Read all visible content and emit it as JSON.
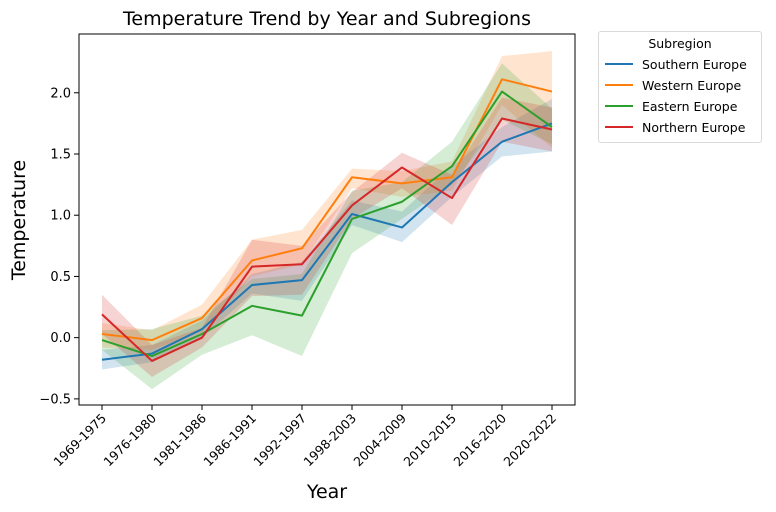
{
  "chart_data": {
    "type": "line",
    "title": "Temperature Trend by Year and Subregions",
    "xlabel": "Year",
    "ylabel": "Temperature",
    "categories": [
      "1969-1975",
      "1976-1980",
      "1981-1986",
      "1986-1991",
      "1992-1997",
      "1998-2003",
      "2004-2009",
      "2010-2015",
      "2016-2020",
      "2020-2022"
    ],
    "ylim": [
      -0.55,
      2.48
    ],
    "yticks": [
      -0.5,
      0.0,
      0.5,
      1.0,
      1.5,
      2.0
    ],
    "ytick_labels": [
      "−0.5",
      "0.0",
      "0.5",
      "1.0",
      "1.5",
      "2.0"
    ],
    "grid": false,
    "legend": {
      "title": "Subregion",
      "placement": "outside-top-right"
    },
    "series": [
      {
        "name": "Southern Europe",
        "color": "#1f77b4",
        "values": [
          -0.18,
          -0.13,
          0.07,
          0.43,
          0.47,
          1.01,
          0.9,
          1.27,
          1.6,
          1.75
        ],
        "lower": [
          -0.26,
          -0.2,
          0.0,
          0.36,
          0.3,
          0.92,
          0.78,
          1.15,
          1.48,
          1.52
        ],
        "upper": [
          -0.1,
          -0.06,
          0.14,
          0.52,
          0.62,
          1.12,
          1.03,
          1.4,
          1.72,
          1.95
        ]
      },
      {
        "name": "Western Europe",
        "color": "#ff7f0e",
        "values": [
          0.03,
          -0.02,
          0.16,
          0.63,
          0.73,
          1.31,
          1.26,
          1.31,
          2.11,
          2.01
        ],
        "lower": [
          -0.08,
          -0.1,
          0.05,
          0.5,
          0.6,
          1.22,
          1.15,
          1.2,
          1.9,
          1.55
        ],
        "upper": [
          0.12,
          0.06,
          0.27,
          0.8,
          0.88,
          1.38,
          1.36,
          1.44,
          2.3,
          2.34
        ]
      },
      {
        "name": "Eastern Europe",
        "color": "#2ca02c",
        "values": [
          -0.02,
          -0.15,
          0.03,
          0.26,
          0.18,
          0.97,
          1.11,
          1.4,
          2.01,
          1.72
        ],
        "lower": [
          -0.1,
          -0.42,
          -0.14,
          0.02,
          -0.15,
          0.69,
          0.97,
          1.25,
          1.78,
          1.58
        ],
        "upper": [
          0.06,
          0.07,
          0.18,
          0.48,
          0.52,
          1.2,
          1.27,
          1.6,
          2.24,
          1.87
        ]
      },
      {
        "name": "Northern Europe",
        "color": "#d62728",
        "values": [
          0.19,
          -0.19,
          0.0,
          0.58,
          0.6,
          1.08,
          1.39,
          1.14,
          1.79,
          1.7
        ],
        "lower": [
          0.03,
          -0.32,
          -0.08,
          0.34,
          0.35,
          0.97,
          1.22,
          0.92,
          1.6,
          1.52
        ],
        "upper": [
          0.35,
          -0.06,
          0.08,
          0.8,
          0.75,
          1.19,
          1.51,
          1.33,
          1.96,
          1.88
        ]
      }
    ]
  }
}
